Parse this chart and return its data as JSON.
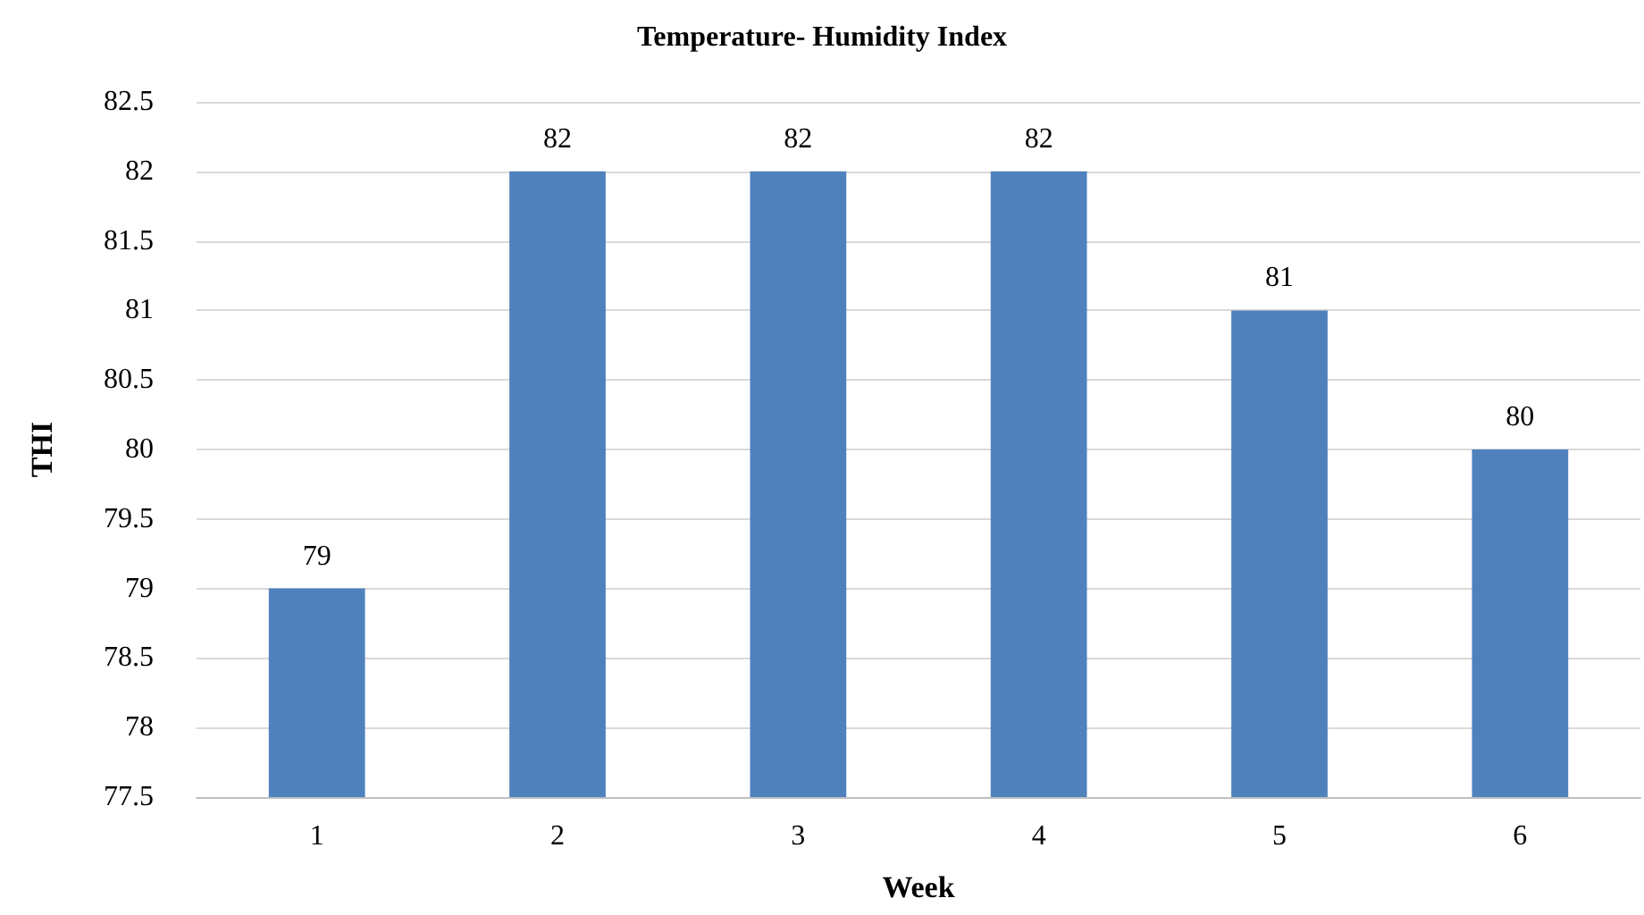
{
  "chart_data": {
    "type": "bar",
    "title": "Temperature- Humidity Index",
    "xlabel": "Week",
    "ylabel": "THI",
    "categories": [
      "1",
      "2",
      "3",
      "4",
      "5",
      "6"
    ],
    "values": [
      79,
      82,
      82,
      82,
      81,
      80
    ],
    "color": "#4f81bd",
    "ylim": [
      77.5,
      82.5
    ],
    "yticks": [
      77.5,
      78,
      78.5,
      79,
      79.5,
      80,
      80.5,
      81,
      81.5,
      82,
      82.5
    ],
    "grid": "y",
    "data_labels": true
  }
}
